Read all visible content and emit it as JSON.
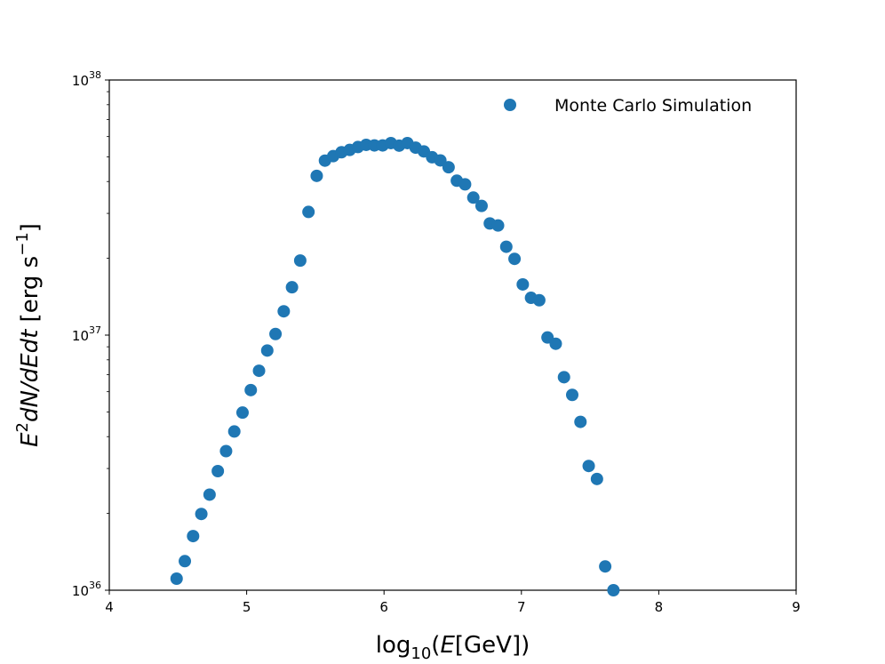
{
  "chart_data": {
    "type": "scatter",
    "xlabel": "log10(E[GeV])",
    "ylabel": "E^2dN/dEdt [erg s^-1]",
    "x_scale": "linear",
    "y_scale": "log",
    "xlim": [
      4,
      9
    ],
    "ylim": [
      1e+36,
      1e+38
    ],
    "x_ticks": [
      "4",
      "5",
      "6",
      "7",
      "8",
      "9"
    ],
    "y_ticks": [
      {
        "base": "10",
        "exp": "36"
      },
      {
        "base": "10",
        "exp": "37"
      },
      {
        "base": "10",
        "exp": "38"
      }
    ],
    "grid": false,
    "legend": {
      "position": "top-right",
      "entries": [
        "Monte Carlo Simulation"
      ]
    },
    "series": [
      {
        "name": "Monte Carlo Simulation",
        "color": "#1f77b4",
        "points": [
          [
            4.49,
            1.11e+36
          ],
          [
            4.55,
            1.3e+36
          ],
          [
            4.61,
            1.63e+36
          ],
          [
            4.67,
            1.99e+36
          ],
          [
            4.73,
            2.37e+36
          ],
          [
            4.79,
            2.93e+36
          ],
          [
            4.85,
            3.51e+36
          ],
          [
            4.91,
            4.19e+36
          ],
          [
            4.97,
            4.97e+36
          ],
          [
            5.03,
            6.09e+36
          ],
          [
            5.09,
            7.25e+36
          ],
          [
            5.15,
            8.7e+36
          ],
          [
            5.21,
            1.01e+37
          ],
          [
            5.27,
            1.24e+37
          ],
          [
            5.33,
            1.54e+37
          ],
          [
            5.39,
            1.96e+37
          ],
          [
            5.45,
            3.04e+37
          ],
          [
            5.51,
            4.21e+37
          ],
          [
            5.57,
            4.83e+37
          ],
          [
            5.63,
            5.03e+37
          ],
          [
            5.69,
            5.21e+37
          ],
          [
            5.75,
            5.32e+37
          ],
          [
            5.81,
            5.46e+37
          ],
          [
            5.87,
            5.57e+37
          ],
          [
            5.93,
            5.54e+37
          ],
          [
            5.99,
            5.54e+37
          ],
          [
            6.05,
            5.66e+37
          ],
          [
            6.11,
            5.53e+37
          ],
          [
            6.17,
            5.66e+37
          ],
          [
            6.23,
            5.43e+37
          ],
          [
            6.29,
            5.25e+37
          ],
          [
            6.35,
            4.98e+37
          ],
          [
            6.41,
            4.84e+37
          ],
          [
            6.47,
            4.55e+37
          ],
          [
            6.53,
            4.03e+37
          ],
          [
            6.59,
            3.9e+37
          ],
          [
            6.65,
            3.46e+37
          ],
          [
            6.71,
            3.21e+37
          ],
          [
            6.77,
            2.74e+37
          ],
          [
            6.83,
            2.69e+37
          ],
          [
            6.89,
            2.22e+37
          ],
          [
            6.95,
            1.99e+37
          ],
          [
            7.01,
            1.58e+37
          ],
          [
            7.07,
            1.4e+37
          ],
          [
            7.13,
            1.37e+37
          ],
          [
            7.19,
            9.79e+36
          ],
          [
            7.25,
            9.25e+36
          ],
          [
            7.31,
            6.84e+36
          ],
          [
            7.37,
            5.83e+36
          ],
          [
            7.43,
            4.57e+36
          ],
          [
            7.49,
            3.07e+36
          ],
          [
            7.55,
            2.73e+36
          ],
          [
            7.61,
            1.24e+36
          ],
          [
            7.67,
            1e+36
          ]
        ]
      }
    ]
  }
}
